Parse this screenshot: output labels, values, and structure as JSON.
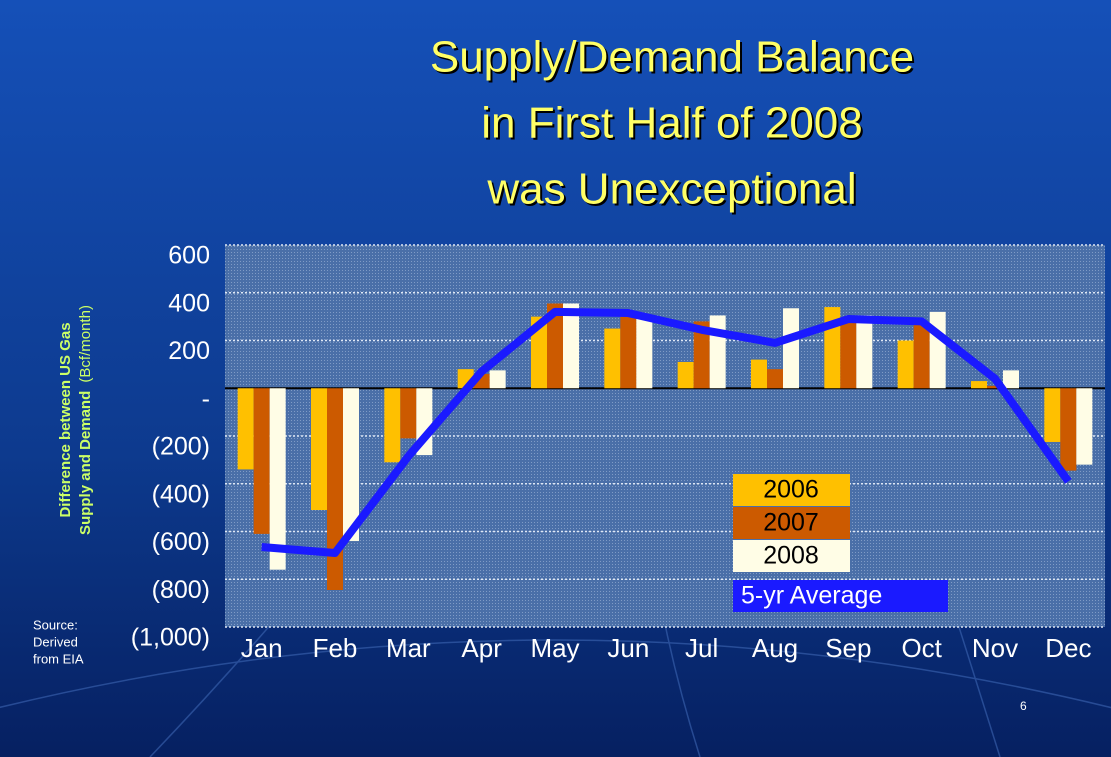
{
  "chart_data": {
    "type": "bar",
    "title": [
      "Supply/Demand Balance",
      "in First Half of 2008",
      "was Unexceptional"
    ],
    "y_label": [
      "Difference between US Gas",
      "Supply and Demand",
      "(Bcf/month)"
    ],
    "source": [
      "Source:",
      "Derived",
      "from EIA"
    ],
    "page_number": "6",
    "categories": [
      "Jan",
      "Feb",
      "Mar",
      "Apr",
      "May",
      "Jun",
      "Jul",
      "Aug",
      "Sep",
      "Oct",
      "Nov",
      "Dec"
    ],
    "series": [
      {
        "name": "2006",
        "color": "#ffc000",
        "values": [
          -340,
          -510,
          -310,
          80,
          300,
          250,
          110,
          120,
          340,
          200,
          30,
          -225
        ]
      },
      {
        "name": "2007",
        "color": "#cc5a00",
        "values": [
          -610,
          -845,
          -210,
          60,
          355,
          310,
          280,
          80,
          290,
          270,
          10,
          -345
        ]
      },
      {
        "name": "2008",
        "color": "#fffde6",
        "values": [
          -760,
          -640,
          -280,
          75,
          355,
          290,
          305,
          335,
          305,
          320,
          75,
          -320
        ]
      },
      {
        "name": "5-yr Average",
        "type": "line",
        "color": "#1a1aff",
        "values": [
          -665,
          -690,
          -285,
          70,
          320,
          315,
          245,
          190,
          290,
          280,
          40,
          -390
        ]
      }
    ],
    "ylim": [
      -1000,
      600
    ],
    "yticks": [
      {
        "value": -1000,
        "label": "(1,000)"
      },
      {
        "value": -800,
        "label": "(800)"
      },
      {
        "value": -600,
        "label": "(600)"
      },
      {
        "value": -400,
        "label": "(400)"
      },
      {
        "value": -200,
        "label": "(200)"
      },
      {
        "value": 0,
        "label": "-"
      },
      200,
      400,
      600
    ],
    "grid": true
  }
}
